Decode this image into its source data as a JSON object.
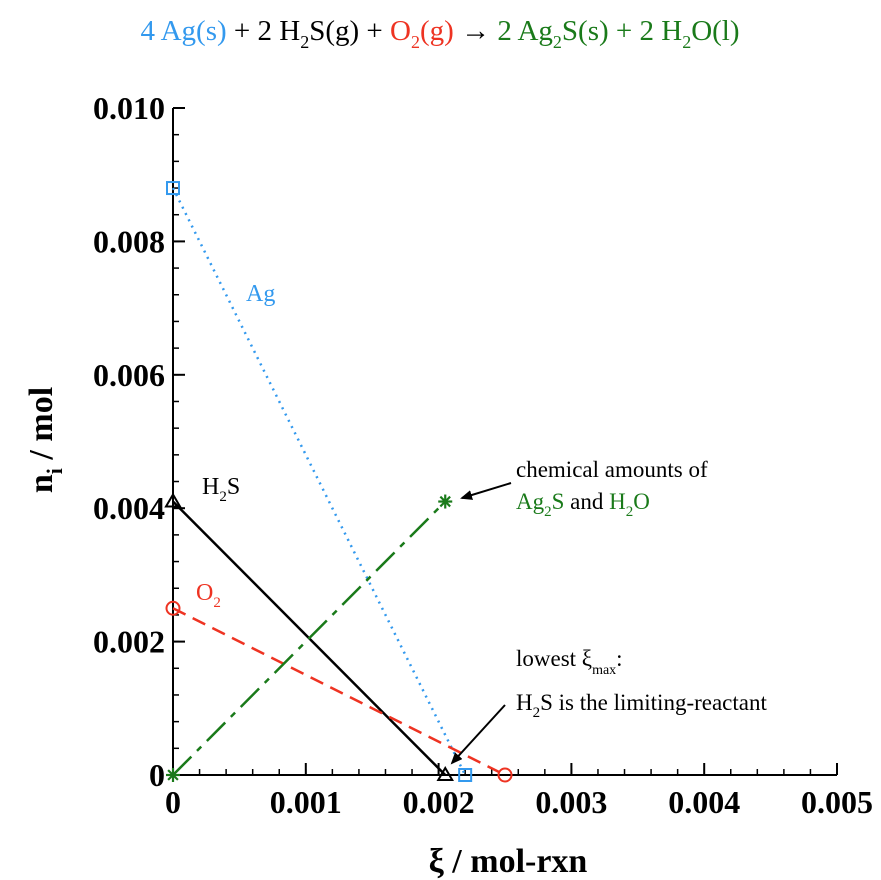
{
  "equation": {
    "ag_term": "4 Ag(s)",
    "h2s_term_a": "+ 2 H",
    "h2s_term_sub": "2",
    "h2s_term_b": "S(g) +",
    "o2_term_a": "O",
    "o2_term_sub": "2",
    "o2_term_b": "(g)",
    "arrow": "→",
    "ag2s_term_a": "2 Ag",
    "ag2s_term_sub": "2",
    "ag2s_term_b": "S(s) + 2 H",
    "h2o_term_sub": "2",
    "h2o_term_b": "O(l)"
  },
  "colors": {
    "ag": "#3399ee",
    "h2s": "#000000",
    "o2": "#ee3322",
    "products": "#1a7a1a"
  },
  "chart_data": {
    "type": "line",
    "x_axis": {
      "label_main": "ξ / mol-rxn",
      "range": [
        0,
        0.005
      ],
      "ticks": [
        "0",
        "0.001",
        "0.002",
        "0.003",
        "0.004",
        "0.005"
      ],
      "tick_values": [
        0,
        0.001,
        0.002,
        0.003,
        0.004,
        0.005
      ]
    },
    "y_axis": {
      "label_a": "n",
      "label_sub": "i",
      "label_b": " / mol",
      "range": [
        0,
        0.01
      ],
      "ticks": [
        "0",
        "0.002",
        "0.004",
        "0.006",
        "0.008",
        "0.010"
      ],
      "tick_values": [
        0,
        0.002,
        0.004,
        0.006,
        0.008,
        0.01
      ]
    },
    "grid": false,
    "series": [
      {
        "key": "ag",
        "name": "Ag",
        "style": "dotted",
        "marker": "square",
        "x": [
          0,
          0.0022
        ],
        "y": [
          0.0088,
          0.0
        ]
      },
      {
        "key": "h2s",
        "name": "H2S",
        "style": "solid",
        "marker": "triangle",
        "x": [
          0,
          0.00205
        ],
        "y": [
          0.0041,
          0.0
        ]
      },
      {
        "key": "o2",
        "name": "O2",
        "style": "dashed",
        "marker": "circle",
        "x": [
          0,
          0.0025
        ],
        "y": [
          0.0025,
          0.0
        ]
      },
      {
        "key": "products",
        "name": "",
        "style": "longdash",
        "marker": "asterisk",
        "x": [
          0,
          0.00205
        ],
        "y": [
          0.0,
          0.0041
        ]
      }
    ],
    "labels": {
      "ag": "Ag",
      "h2s_a": "H",
      "h2s_sub": "2",
      "h2s_b": "S",
      "o2_a": "O",
      "o2_sub": "2"
    },
    "annotations": {
      "chem_line1": "chemical amounts of",
      "chem_ag2s_a": "Ag",
      "chem_ag2s_sub": "2",
      "chem_ag2s_b": "S",
      "chem_and": "and",
      "chem_h2o_a": "H",
      "chem_h2o_sub": "2",
      "chem_h2o_b": "O",
      "lowest_a": "lowest ξ",
      "lowest_sub": "max",
      "lowest_b": ":",
      "limit_a": "H",
      "limit_sub": "2",
      "limit_b": "S is the limiting-reactant"
    }
  }
}
